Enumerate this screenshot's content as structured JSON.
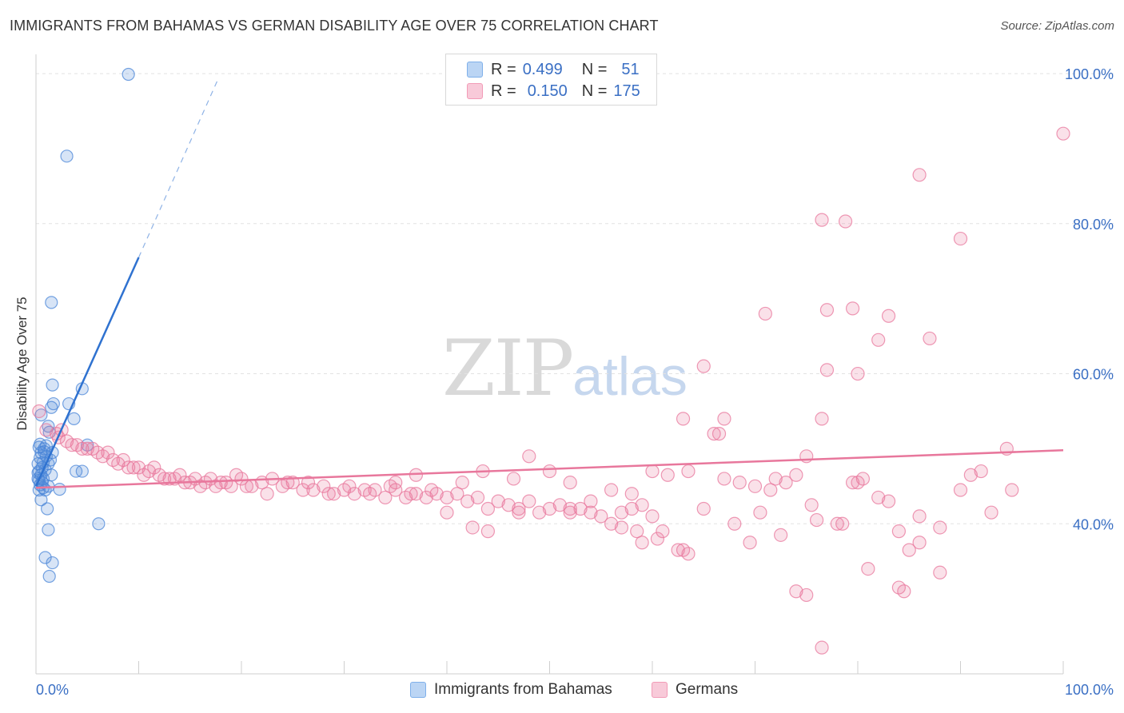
{
  "title": "IMMIGRANTS FROM BAHAMAS VS GERMAN DISABILITY AGE OVER 75 CORRELATION CHART",
  "source": "Source: ZipAtlas.com",
  "watermark": {
    "zip": "ZIP",
    "atlas": "atlas"
  },
  "legend": {
    "rows": [
      {
        "r_label": "R =",
        "r_value": "0.499",
        "n_label": "N =",
        "n_value": "51",
        "color": "#7fb0ea"
      },
      {
        "r_label": "R =",
        "r_value": "0.150",
        "n_label": "N =",
        "n_value": "175",
        "color": "#f29bb7"
      }
    ]
  },
  "bottom_legend": [
    {
      "label": "Immigrants from Bahamas",
      "color": "#7fb0ea"
    },
    {
      "label": "Germans",
      "color": "#f29bb7"
    }
  ],
  "chart_data": {
    "type": "scatter",
    "xlabel": "",
    "ylabel": "Disability Age Over 75",
    "x_tick_labels": [
      "0.0%",
      "100.0%"
    ],
    "y_tick_labels": [
      "40.0%",
      "60.0%",
      "80.0%",
      "100.0%"
    ],
    "y_ticks": [
      40,
      60,
      80,
      100
    ],
    "xlim": [
      0,
      100
    ],
    "ylim": [
      20,
      101.5
    ],
    "grid": "horizontal dashed",
    "colors": {
      "blue": "#4a86d8",
      "pink": "#e8779c",
      "tick_text": "#3a6fc4"
    },
    "series": [
      {
        "name": "Immigrants from Bahamas",
        "color": "#4a86d8",
        "trend": {
          "x0": 0.0,
          "y0": 45.0,
          "x1": 10.0,
          "y1": 75.5,
          "dash_to_x": 17.8,
          "dash_to_y": 99.5
        },
        "points": [
          [
            9.0,
            99.9
          ],
          [
            3.0,
            89.0
          ],
          [
            1.5,
            69.5
          ],
          [
            1.6,
            58.5
          ],
          [
            4.5,
            58.0
          ],
          [
            1.5,
            55.5
          ],
          [
            1.7,
            56.0
          ],
          [
            3.2,
            56.0
          ],
          [
            3.7,
            54.0
          ],
          [
            0.5,
            54.5
          ],
          [
            1.2,
            53.0
          ],
          [
            1.3,
            52.2
          ],
          [
            5.0,
            50.5
          ],
          [
            0.3,
            50.2
          ],
          [
            0.8,
            50.0
          ],
          [
            1.6,
            49.5
          ],
          [
            0.5,
            49.5
          ],
          [
            1.0,
            49.0
          ],
          [
            0.4,
            48.8
          ],
          [
            0.7,
            48.2
          ],
          [
            1.2,
            48.0
          ],
          [
            0.2,
            48.0
          ],
          [
            0.6,
            47.5
          ],
          [
            0.9,
            47.2
          ],
          [
            0.3,
            47.0
          ],
          [
            3.9,
            47.0
          ],
          [
            4.5,
            47.0
          ],
          [
            0.5,
            46.5
          ],
          [
            1.5,
            46.5
          ],
          [
            0.2,
            46.0
          ],
          [
            0.6,
            45.5
          ],
          [
            0.4,
            45.2
          ],
          [
            1.2,
            45.0
          ],
          [
            0.7,
            44.8
          ],
          [
            2.3,
            44.6
          ],
          [
            0.3,
            44.5
          ],
          [
            0.9,
            44.5
          ],
          [
            0.5,
            43.2
          ],
          [
            1.1,
            42.0
          ],
          [
            6.1,
            40.0
          ],
          [
            1.2,
            39.2
          ],
          [
            0.9,
            35.5
          ],
          [
            1.6,
            34.8
          ],
          [
            1.3,
            33.0
          ],
          [
            0.4,
            50.6
          ],
          [
            1.0,
            50.4
          ],
          [
            0.2,
            46.8
          ],
          [
            0.7,
            46.0
          ],
          [
            1.4,
            48.5
          ],
          [
            0.8,
            49.6
          ],
          [
            0.3,
            45.8
          ]
        ]
      },
      {
        "name": "Germans",
        "color": "#e8779c",
        "trend": {
          "x0": 0.0,
          "y0": 44.8,
          "x1": 100.0,
          "y1": 49.8
        },
        "points": [
          [
            100.0,
            92.0
          ],
          [
            86.0,
            86.5
          ],
          [
            76.5,
            80.5
          ],
          [
            78.8,
            80.3
          ],
          [
            90.0,
            78.0
          ],
          [
            71.0,
            68.0
          ],
          [
            77.0,
            68.5
          ],
          [
            79.5,
            68.7
          ],
          [
            83.0,
            67.7
          ],
          [
            82.0,
            64.5
          ],
          [
            87.0,
            64.7
          ],
          [
            65.0,
            61.0
          ],
          [
            77.0,
            60.5
          ],
          [
            80.0,
            60.0
          ],
          [
            63.0,
            54.0
          ],
          [
            67.0,
            54.0
          ],
          [
            76.5,
            54.0
          ],
          [
            66.0,
            52.0
          ],
          [
            66.5,
            52.0
          ],
          [
            0.3,
            55.0
          ],
          [
            2.0,
            52.0
          ],
          [
            3.0,
            51.0
          ],
          [
            2.5,
            52.5
          ],
          [
            4.0,
            50.5
          ],
          [
            5.5,
            50.0
          ],
          [
            6.0,
            49.5
          ],
          [
            7.0,
            49.5
          ],
          [
            8.0,
            48.0
          ],
          [
            9.0,
            47.5
          ],
          [
            10.0,
            47.5
          ],
          [
            11.0,
            47.0
          ],
          [
            12.0,
            46.5
          ],
          [
            13.0,
            46.0
          ],
          [
            14.0,
            46.5
          ],
          [
            15.0,
            45.5
          ],
          [
            16.0,
            45.0
          ],
          [
            17.0,
            46.0
          ],
          [
            18.0,
            45.5
          ],
          [
            19.0,
            45.0
          ],
          [
            20.0,
            46.0
          ],
          [
            21.0,
            45.0
          ],
          [
            22.0,
            45.5
          ],
          [
            23.0,
            46.0
          ],
          [
            24.0,
            45.0
          ],
          [
            25.0,
            45.5
          ],
          [
            26.0,
            44.5
          ],
          [
            27.0,
            44.5
          ],
          [
            28.0,
            45.0
          ],
          [
            29.0,
            44.0
          ],
          [
            30.0,
            44.5
          ],
          [
            31.0,
            44.0
          ],
          [
            32.0,
            44.5
          ],
          [
            33.0,
            44.5
          ],
          [
            34.0,
            43.5
          ],
          [
            35.0,
            44.5
          ],
          [
            36.0,
            43.5
          ],
          [
            37.0,
            44.0
          ],
          [
            38.0,
            43.5
          ],
          [
            39.0,
            44.0
          ],
          [
            40.0,
            43.5
          ],
          [
            41.0,
            44.0
          ],
          [
            42.0,
            43.0
          ],
          [
            43.0,
            43.5
          ],
          [
            44.0,
            42.0
          ],
          [
            45.0,
            43.0
          ],
          [
            46.0,
            42.5
          ],
          [
            47.0,
            42.0
          ],
          [
            48.0,
            43.0
          ],
          [
            49.0,
            41.5
          ],
          [
            50.0,
            42.0
          ],
          [
            51.0,
            42.5
          ],
          [
            52.0,
            41.5
          ],
          [
            53.0,
            42.0
          ],
          [
            54.0,
            41.5
          ],
          [
            55.0,
            41.0
          ],
          [
            56.0,
            40.0
          ],
          [
            57.0,
            41.5
          ],
          [
            58.0,
            42.0
          ],
          [
            59.0,
            42.5
          ],
          [
            60.0,
            41.0
          ],
          [
            35.0,
            45.5
          ],
          [
            37.0,
            46.5
          ],
          [
            41.5,
            45.5
          ],
          [
            43.5,
            47.0
          ],
          [
            46.5,
            46.0
          ],
          [
            48.0,
            49.0
          ],
          [
            50.0,
            47.0
          ],
          [
            52.0,
            45.5
          ],
          [
            54.0,
            43.0
          ],
          [
            56.0,
            44.5
          ],
          [
            58.0,
            44.0
          ],
          [
            60.0,
            47.0
          ],
          [
            61.5,
            46.5
          ],
          [
            63.5,
            47.0
          ],
          [
            65.0,
            42.0
          ],
          [
            67.0,
            46.0
          ],
          [
            68.5,
            45.5
          ],
          [
            70.0,
            45.0
          ],
          [
            72.0,
            46.0
          ],
          [
            74.0,
            46.5
          ],
          [
            75.0,
            49.0
          ],
          [
            76.0,
            40.5
          ],
          [
            78.0,
            40.0
          ],
          [
            80.0,
            45.5
          ],
          [
            82.0,
            43.5
          ],
          [
            84.0,
            39.0
          ],
          [
            86.0,
            41.0
          ],
          [
            88.0,
            33.5
          ],
          [
            90.0,
            44.5
          ],
          [
            92.0,
            47.0
          ],
          [
            94.5,
            50.0
          ],
          [
            95.0,
            44.5
          ],
          [
            86.0,
            37.5
          ],
          [
            72.5,
            38.5
          ],
          [
            69.5,
            37.5
          ],
          [
            62.5,
            36.5
          ],
          [
            74.0,
            31.0
          ],
          [
            76.5,
            23.5
          ],
          [
            81.0,
            34.0
          ],
          [
            84.0,
            31.5
          ],
          [
            85.0,
            36.5
          ],
          [
            88.0,
            39.5
          ],
          [
            40.0,
            41.5
          ],
          [
            42.5,
            39.5
          ],
          [
            44.0,
            39.0
          ],
          [
            47.0,
            41.5
          ],
          [
            52.0,
            42.0
          ],
          [
            57.0,
            39.5
          ],
          [
            59.0,
            37.5
          ],
          [
            61.0,
            39.0
          ],
          [
            63.5,
            36.0
          ],
          [
            68.0,
            40.0
          ],
          [
            70.5,
            41.5
          ],
          [
            71.5,
            44.5
          ],
          [
            73.0,
            45.5
          ],
          [
            75.5,
            42.5
          ],
          [
            78.5,
            40.0
          ],
          [
            79.5,
            45.5
          ],
          [
            80.5,
            46.0
          ],
          [
            83.0,
            43.0
          ],
          [
            91.0,
            46.5
          ],
          [
            93.0,
            41.5
          ],
          [
            20.5,
            45.0
          ],
          [
            22.5,
            44.0
          ],
          [
            24.5,
            45.5
          ],
          [
            26.5,
            45.5
          ],
          [
            28.5,
            44.0
          ],
          [
            30.5,
            45.0
          ],
          [
            32.5,
            44.0
          ],
          [
            34.5,
            45.0
          ],
          [
            36.5,
            44.0
          ],
          [
            38.5,
            44.5
          ],
          [
            11.5,
            47.5
          ],
          [
            13.5,
            46.0
          ],
          [
            15.5,
            46.0
          ],
          [
            17.5,
            45.0
          ],
          [
            19.5,
            46.5
          ],
          [
            8.5,
            48.5
          ],
          [
            9.5,
            47.5
          ],
          [
            10.5,
            46.5
          ],
          [
            12.5,
            46.0
          ],
          [
            14.5,
            45.5
          ],
          [
            16.5,
            45.5
          ],
          [
            18.5,
            45.5
          ],
          [
            2.2,
            51.5
          ],
          [
            3.5,
            50.5
          ],
          [
            4.5,
            50.0
          ],
          [
            6.5,
            49.0
          ],
          [
            7.5,
            48.5
          ],
          [
            1.0,
            52.5
          ],
          [
            5.0,
            50.0
          ],
          [
            63.0,
            36.5
          ],
          [
            84.5,
            31.0
          ],
          [
            75.0,
            30.5
          ],
          [
            60.5,
            38.0
          ],
          [
            58.5,
            39.0
          ]
        ]
      }
    ]
  }
}
